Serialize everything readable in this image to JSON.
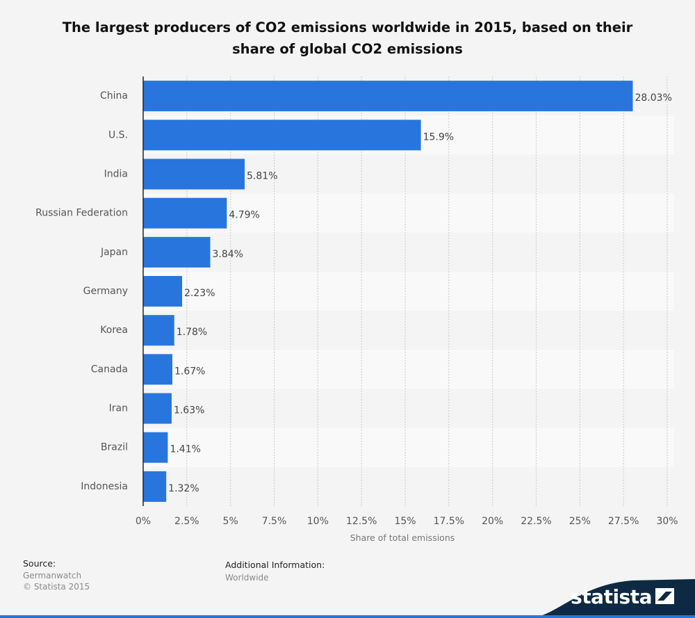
{
  "title": "The largest producers of CO2 emissions worldwide in 2015, based on their share of global CO2 emissions",
  "footer": {
    "source_label": "Source:",
    "source_lines": [
      "Germanwatch",
      "© Statista 2015"
    ],
    "additional_label": "Additional Information:",
    "additional_lines": [
      "Worldwide"
    ],
    "brand": "statista"
  },
  "colors": {
    "bar": "#2876dd",
    "background": "#f4f4f4",
    "band": "#f9f9f9",
    "brand_bg": "#0e2a43"
  },
  "chart_data": {
    "type": "bar",
    "orientation": "horizontal",
    "categories": [
      "China",
      "U.S.",
      "India",
      "Russian Federation",
      "Japan",
      "Germany",
      "Korea",
      "Canada",
      "Iran",
      "Brazil",
      "Indonesia"
    ],
    "values": [
      28.03,
      15.9,
      5.81,
      4.79,
      3.84,
      2.23,
      1.78,
      1.67,
      1.63,
      1.41,
      1.32
    ],
    "value_labels": [
      "28.03%",
      "15.9%",
      "5.81%",
      "4.79%",
      "3.84%",
      "2.23%",
      "1.78%",
      "1.67%",
      "1.63%",
      "1.41%",
      "1.32%"
    ],
    "xlabel": "Share of total emissions",
    "ylabel": "",
    "xlim": [
      0,
      30
    ],
    "xticks": [
      0,
      2.5,
      5,
      7.5,
      10,
      12.5,
      15,
      17.5,
      20,
      22.5,
      25,
      27.5,
      30
    ],
    "xtick_labels": [
      "0%",
      "2.5%",
      "5%",
      "7.5%",
      "10%",
      "12.5%",
      "15%",
      "17.5%",
      "20%",
      "22.5%",
      "25%",
      "27.5%",
      "30%"
    ],
    "grid": true,
    "legend": "none"
  }
}
